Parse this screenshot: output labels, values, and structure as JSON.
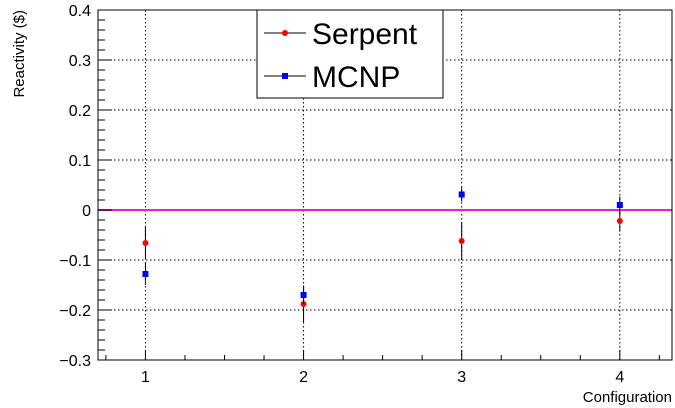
{
  "chart_data": {
    "type": "scatter",
    "xlabel": "Configuration",
    "ylabel": "Reactivity ($)",
    "xlim": [
      0.7,
      4.33
    ],
    "ylim": [
      -0.3,
      0.4
    ],
    "x_ticks": [
      1,
      2,
      3,
      4
    ],
    "x_tick_labels": [
      "1",
      "2",
      "3",
      "4"
    ],
    "y_ticks": [
      -0.3,
      -0.2,
      -0.1,
      0,
      0.1,
      0.2,
      0.3,
      0.4
    ],
    "y_tick_labels": [
      "−0.3",
      "−0.2",
      "−0.1",
      "0",
      "0.1",
      "0.2",
      "0.3",
      "0.4"
    ],
    "grid": true,
    "legend_position": "top-center",
    "reference_line": {
      "y": 0,
      "color": "#e020e0"
    },
    "series": [
      {
        "name": "Serpent",
        "color": "#ff0000",
        "marker": "circle",
        "x": [
          1,
          2,
          3,
          4
        ],
        "y": [
          -0.066,
          -0.188,
          -0.062,
          -0.022
        ],
        "err": [
          0.033,
          0.037,
          0.038,
          0.021
        ]
      },
      {
        "name": "MCNP",
        "color": "#0000ff",
        "marker": "square",
        "x": [
          1,
          2,
          3,
          4
        ],
        "y": [
          -0.128,
          -0.17,
          0.031,
          0.01
        ],
        "err": [
          0.022,
          0.018,
          0.014,
          0.017
        ]
      }
    ]
  }
}
